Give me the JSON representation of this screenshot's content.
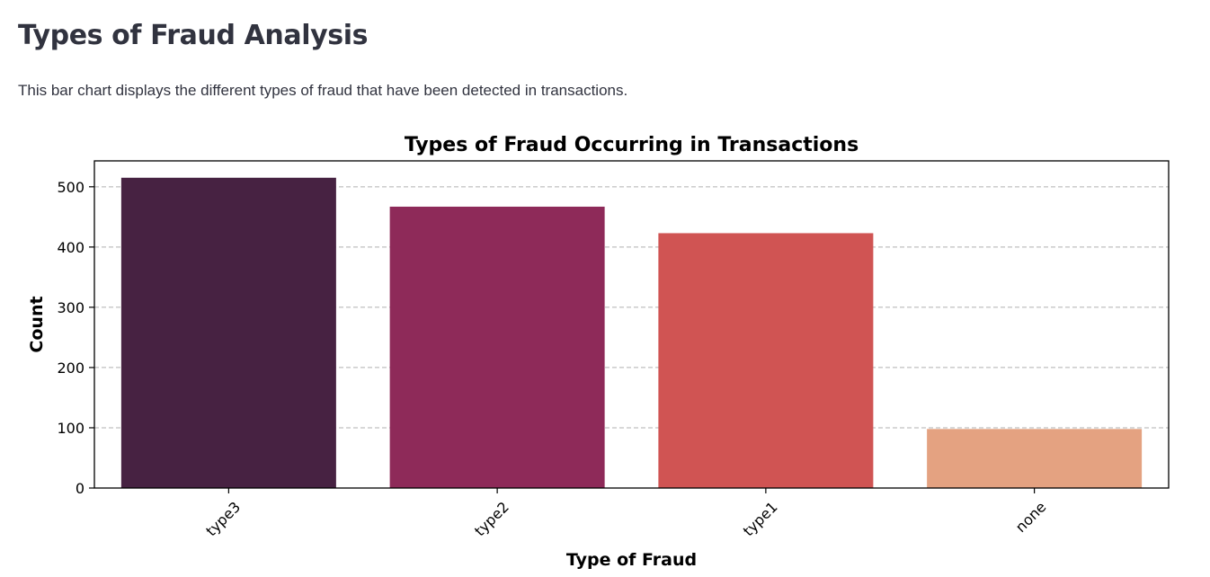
{
  "page": {
    "title": "Types of Fraud Analysis",
    "description": "This bar chart displays the different types of fraud that have been detected in transactions."
  },
  "chart_data": {
    "type": "bar",
    "title": "Types of Fraud Occurring in Transactions",
    "xlabel": "Type of Fraud",
    "ylabel": "Count",
    "categories": [
      "type3",
      "type2",
      "type1",
      "none"
    ],
    "values": [
      515,
      467,
      423,
      98
    ],
    "colors": [
      "#472242",
      "#8e2a59",
      "#d05453",
      "#e4a281"
    ],
    "ylim": [
      0,
      543
    ],
    "yticks": [
      0,
      100,
      200,
      300,
      400,
      500
    ],
    "grid": "y-dashed",
    "legend": "none"
  }
}
